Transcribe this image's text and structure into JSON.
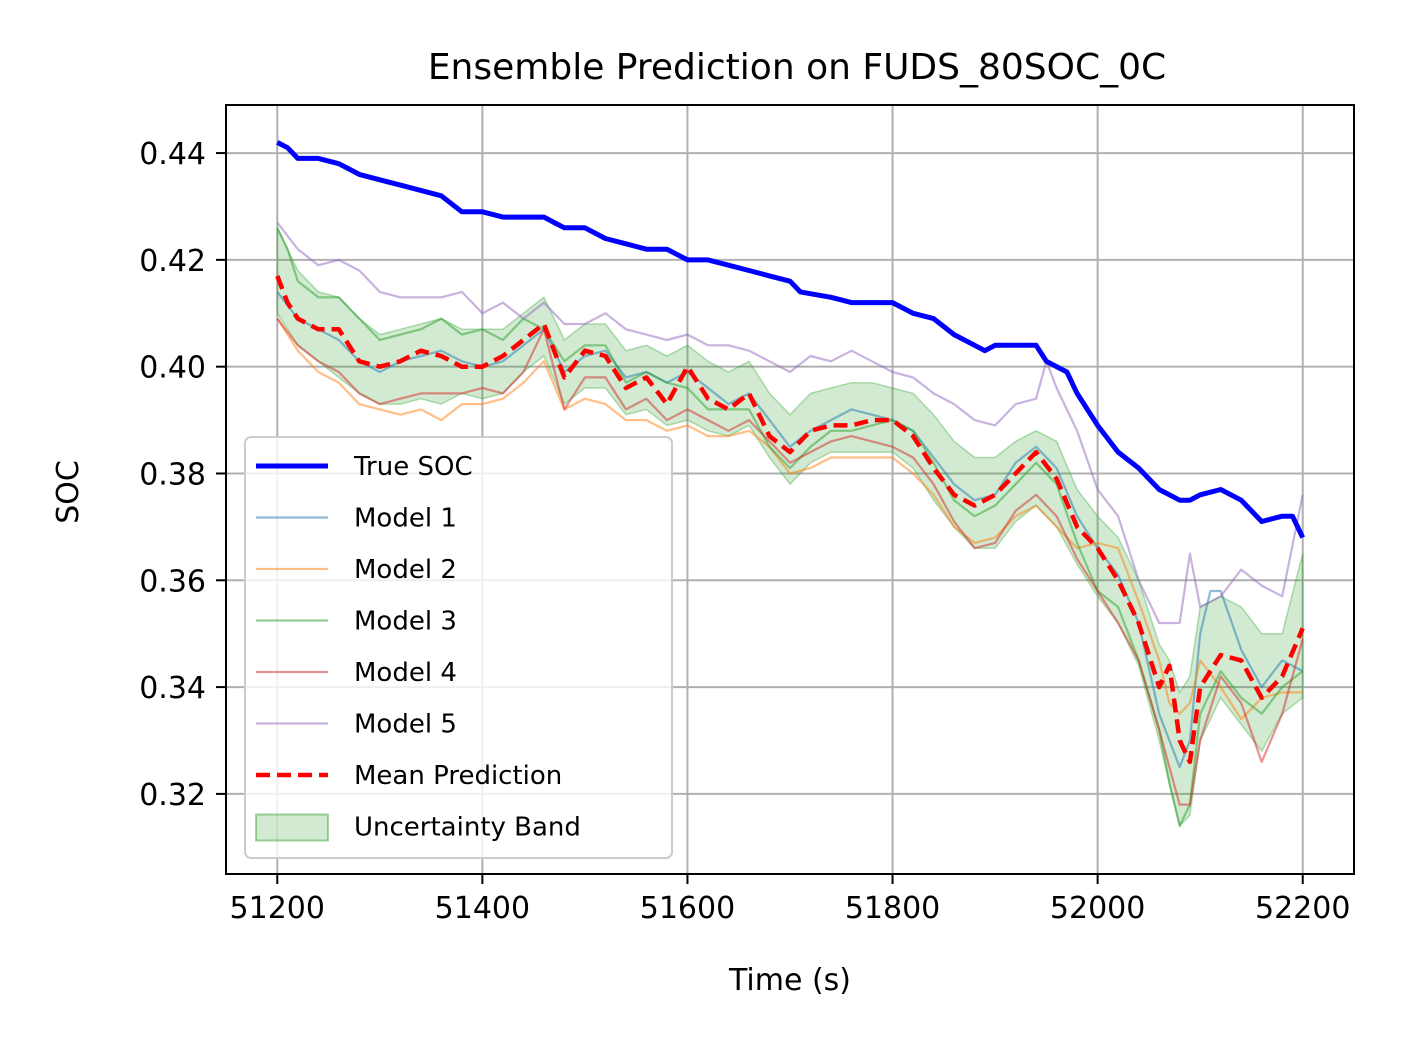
{
  "chart_data": {
    "type": "line",
    "title": "Ensemble Prediction on FUDS_80SOC_0C",
    "xlabel": "Time (s)",
    "ylabel": "SOC",
    "xlim": [
      51150,
      52250
    ],
    "ylim": [
      0.305,
      0.449
    ],
    "xticks": [
      51200,
      51400,
      51600,
      51800,
      52000,
      52200
    ],
    "yticks": [
      0.32,
      0.34,
      0.36,
      0.38,
      0.4,
      0.42,
      0.44
    ],
    "grid": true,
    "legend_position": "lower-left",
    "series": [
      {
        "name": "True SOC",
        "color": "#0000ff",
        "style": "solid",
        "x": [
          51200,
          51210,
          51220,
          51240,
          51260,
          51280,
          51300,
          51320,
          51340,
          51360,
          51380,
          51400,
          51420,
          51440,
          51460,
          51470,
          51480,
          51500,
          51520,
          51540,
          51560,
          51580,
          51600,
          51620,
          51640,
          51660,
          51680,
          51700,
          51710,
          51740,
          51760,
          51780,
          51800,
          51820,
          51840,
          51860,
          51880,
          51890,
          51900,
          51920,
          51940,
          51950,
          51960,
          51970,
          51980,
          52000,
          52020,
          52040,
          52060,
          52070,
          52080,
          52090,
          52100,
          52120,
          52140,
          52160,
          52180,
          52190,
          52200
        ],
        "y": [
          0.442,
          0.441,
          0.439,
          0.439,
          0.438,
          0.436,
          0.435,
          0.434,
          0.433,
          0.432,
          0.429,
          0.429,
          0.428,
          0.428,
          0.428,
          0.427,
          0.426,
          0.426,
          0.424,
          0.423,
          0.422,
          0.422,
          0.42,
          0.42,
          0.419,
          0.418,
          0.417,
          0.416,
          0.414,
          0.413,
          0.412,
          0.412,
          0.412,
          0.41,
          0.409,
          0.406,
          0.404,
          0.403,
          0.404,
          0.404,
          0.404,
          0.401,
          0.4,
          0.399,
          0.395,
          0.389,
          0.384,
          0.381,
          0.377,
          0.376,
          0.375,
          0.375,
          0.376,
          0.377,
          0.375,
          0.371,
          0.372,
          0.372,
          0.368
        ]
      },
      {
        "name": "Model 1",
        "color": "#1f77b4",
        "style": "thin",
        "x": [
          51200,
          51220,
          51240,
          51260,
          51280,
          51300,
          51320,
          51340,
          51360,
          51380,
          51400,
          51420,
          51440,
          51460,
          51480,
          51500,
          51520,
          51540,
          51560,
          51580,
          51600,
          51620,
          51640,
          51660,
          51680,
          51700,
          51720,
          51740,
          51760,
          51780,
          51800,
          51820,
          51840,
          51860,
          51880,
          51900,
          51920,
          51940,
          51960,
          51980,
          52000,
          52020,
          52040,
          52060,
          52070,
          52080,
          52090,
          52100,
          52110,
          52120,
          52140,
          52160,
          52180,
          52200
        ],
        "y": [
          0.414,
          0.409,
          0.407,
          0.405,
          0.401,
          0.399,
          0.401,
          0.402,
          0.403,
          0.401,
          0.4,
          0.401,
          0.404,
          0.407,
          0.399,
          0.402,
          0.403,
          0.398,
          0.399,
          0.397,
          0.399,
          0.396,
          0.393,
          0.395,
          0.39,
          0.385,
          0.388,
          0.39,
          0.392,
          0.391,
          0.39,
          0.388,
          0.383,
          0.378,
          0.375,
          0.376,
          0.382,
          0.385,
          0.381,
          0.372,
          0.366,
          0.361,
          0.352,
          0.335,
          0.33,
          0.325,
          0.33,
          0.35,
          0.358,
          0.358,
          0.347,
          0.34,
          0.345,
          0.343
        ]
      },
      {
        "name": "Model 2",
        "color": "#ff7f0e",
        "style": "thin",
        "x": [
          51200,
          51220,
          51240,
          51260,
          51280,
          51300,
          51320,
          51340,
          51360,
          51380,
          51400,
          51420,
          51440,
          51460,
          51480,
          51500,
          51520,
          51540,
          51560,
          51580,
          51600,
          51620,
          51640,
          51660,
          51680,
          51700,
          51720,
          51740,
          51760,
          51780,
          51800,
          51820,
          51840,
          51860,
          51880,
          51900,
          51920,
          51940,
          51960,
          51980,
          52000,
          52020,
          52040,
          52060,
          52070,
          52080,
          52090,
          52100,
          52120,
          52140,
          52160,
          52180,
          52200
        ],
        "y": [
          0.409,
          0.403,
          0.399,
          0.397,
          0.393,
          0.392,
          0.391,
          0.392,
          0.39,
          0.393,
          0.393,
          0.394,
          0.397,
          0.401,
          0.392,
          0.394,
          0.393,
          0.39,
          0.39,
          0.388,
          0.389,
          0.387,
          0.387,
          0.388,
          0.385,
          0.38,
          0.381,
          0.383,
          0.383,
          0.383,
          0.383,
          0.38,
          0.376,
          0.37,
          0.367,
          0.368,
          0.372,
          0.374,
          0.37,
          0.366,
          0.367,
          0.366,
          0.356,
          0.345,
          0.337,
          0.335,
          0.337,
          0.345,
          0.34,
          0.334,
          0.338,
          0.339,
          0.339
        ]
      },
      {
        "name": "Model 3",
        "color": "#2ca02c",
        "style": "thin",
        "x": [
          51200,
          51210,
          51220,
          51240,
          51260,
          51280,
          51300,
          51320,
          51340,
          51360,
          51380,
          51400,
          51420,
          51440,
          51460,
          51480,
          51500,
          51520,
          51540,
          51560,
          51580,
          51600,
          51620,
          51640,
          51660,
          51680,
          51700,
          51720,
          51740,
          51760,
          51780,
          51800,
          51820,
          51840,
          51860,
          51880,
          51900,
          51920,
          51940,
          51960,
          51980,
          52000,
          52020,
          52040,
          52060,
          52070,
          52080,
          52090,
          52100,
          52120,
          52140,
          52160,
          52180,
          52200
        ],
        "y": [
          0.426,
          0.422,
          0.416,
          0.413,
          0.413,
          0.409,
          0.405,
          0.406,
          0.407,
          0.409,
          0.406,
          0.407,
          0.405,
          0.409,
          0.407,
          0.401,
          0.404,
          0.404,
          0.397,
          0.399,
          0.397,
          0.396,
          0.392,
          0.392,
          0.392,
          0.385,
          0.381,
          0.385,
          0.388,
          0.388,
          0.389,
          0.39,
          0.388,
          0.382,
          0.375,
          0.372,
          0.374,
          0.378,
          0.382,
          0.378,
          0.367,
          0.358,
          0.355,
          0.345,
          0.332,
          0.322,
          0.314,
          0.318,
          0.335,
          0.343,
          0.338,
          0.335,
          0.34,
          0.343
        ]
      },
      {
        "name": "Model 4",
        "color": "#d62728",
        "style": "thin",
        "x": [
          51200,
          51220,
          51240,
          51260,
          51280,
          51300,
          51320,
          51340,
          51360,
          51380,
          51400,
          51420,
          51440,
          51460,
          51480,
          51500,
          51520,
          51540,
          51560,
          51580,
          51600,
          51620,
          51640,
          51660,
          51680,
          51700,
          51720,
          51740,
          51760,
          51780,
          51800,
          51820,
          51840,
          51860,
          51880,
          51900,
          51920,
          51940,
          51960,
          51980,
          52000,
          52020,
          52040,
          52060,
          52070,
          52080,
          52090,
          52100,
          52120,
          52140,
          52160,
          52180,
          52200
        ],
        "y": [
          0.409,
          0.404,
          0.401,
          0.399,
          0.395,
          0.393,
          0.394,
          0.395,
          0.395,
          0.395,
          0.396,
          0.395,
          0.399,
          0.407,
          0.392,
          0.398,
          0.398,
          0.392,
          0.394,
          0.39,
          0.392,
          0.39,
          0.388,
          0.39,
          0.386,
          0.382,
          0.384,
          0.386,
          0.387,
          0.386,
          0.385,
          0.383,
          0.378,
          0.371,
          0.366,
          0.367,
          0.373,
          0.376,
          0.372,
          0.364,
          0.358,
          0.352,
          0.345,
          0.332,
          0.325,
          0.318,
          0.318,
          0.33,
          0.342,
          0.337,
          0.326,
          0.335,
          0.349
        ]
      },
      {
        "name": "Model 5",
        "color": "#9467bd",
        "style": "thin",
        "x": [
          51200,
          51220,
          51240,
          51260,
          51280,
          51300,
          51320,
          51340,
          51360,
          51380,
          51400,
          51420,
          51440,
          51460,
          51480,
          51500,
          51520,
          51540,
          51560,
          51580,
          51600,
          51620,
          51640,
          51660,
          51680,
          51700,
          51720,
          51740,
          51760,
          51780,
          51800,
          51820,
          51840,
          51860,
          51880,
          51900,
          51920,
          51940,
          51950,
          51960,
          51980,
          52000,
          52020,
          52040,
          52060,
          52080,
          52090,
          52100,
          52120,
          52140,
          52160,
          52180,
          52200
        ],
        "y": [
          0.427,
          0.422,
          0.419,
          0.42,
          0.418,
          0.414,
          0.413,
          0.413,
          0.413,
          0.414,
          0.41,
          0.412,
          0.409,
          0.412,
          0.408,
          0.408,
          0.41,
          0.407,
          0.406,
          0.405,
          0.406,
          0.404,
          0.404,
          0.403,
          0.401,
          0.399,
          0.402,
          0.401,
          0.403,
          0.401,
          0.399,
          0.398,
          0.395,
          0.393,
          0.39,
          0.389,
          0.393,
          0.394,
          0.401,
          0.396,
          0.388,
          0.377,
          0.372,
          0.36,
          0.352,
          0.352,
          0.365,
          0.355,
          0.357,
          0.362,
          0.359,
          0.357,
          0.376
        ]
      },
      {
        "name": "Mean Prediction",
        "color": "#ff0000",
        "style": "dashed",
        "x": [
          51200,
          51210,
          51220,
          51240,
          51260,
          51280,
          51300,
          51320,
          51340,
          51360,
          51380,
          51400,
          51420,
          51440,
          51460,
          51480,
          51500,
          51520,
          51540,
          51560,
          51580,
          51600,
          51620,
          51640,
          51660,
          51680,
          51700,
          51720,
          51740,
          51760,
          51780,
          51800,
          51820,
          51840,
          51860,
          51880,
          51900,
          51920,
          51940,
          51960,
          51980,
          52000,
          52020,
          52040,
          52060,
          52070,
          52080,
          52090,
          52100,
          52120,
          52140,
          52160,
          52180,
          52200
        ],
        "y": [
          0.417,
          0.412,
          0.409,
          0.407,
          0.407,
          0.401,
          0.4,
          0.401,
          0.403,
          0.402,
          0.4,
          0.4,
          0.402,
          0.405,
          0.408,
          0.398,
          0.403,
          0.402,
          0.396,
          0.398,
          0.393,
          0.4,
          0.394,
          0.392,
          0.395,
          0.387,
          0.384,
          0.388,
          0.389,
          0.389,
          0.39,
          0.39,
          0.387,
          0.381,
          0.376,
          0.374,
          0.376,
          0.38,
          0.384,
          0.379,
          0.37,
          0.366,
          0.36,
          0.352,
          0.34,
          0.344,
          0.33,
          0.326,
          0.34,
          0.346,
          0.345,
          0.338,
          0.342,
          0.351
        ]
      }
    ],
    "uncertainty_band": {
      "name": "Uncertainty Band",
      "color": "#2ca02c",
      "x": [
        51200,
        51220,
        51240,
        51260,
        51280,
        51300,
        51320,
        51340,
        51360,
        51380,
        51400,
        51420,
        51440,
        51460,
        51480,
        51500,
        51520,
        51540,
        51560,
        51580,
        51600,
        51620,
        51640,
        51660,
        51680,
        51700,
        51720,
        51740,
        51760,
        51780,
        51800,
        51820,
        51840,
        51860,
        51880,
        51900,
        51920,
        51940,
        51960,
        51980,
        52000,
        52020,
        52040,
        52060,
        52070,
        52080,
        52090,
        52100,
        52120,
        52140,
        52160,
        52180,
        52200
      ],
      "upper": [
        0.426,
        0.418,
        0.414,
        0.413,
        0.409,
        0.406,
        0.407,
        0.408,
        0.409,
        0.407,
        0.407,
        0.407,
        0.41,
        0.413,
        0.405,
        0.408,
        0.408,
        0.403,
        0.404,
        0.402,
        0.404,
        0.401,
        0.399,
        0.401,
        0.395,
        0.391,
        0.395,
        0.396,
        0.397,
        0.397,
        0.396,
        0.395,
        0.391,
        0.386,
        0.383,
        0.383,
        0.386,
        0.388,
        0.386,
        0.377,
        0.372,
        0.368,
        0.36,
        0.348,
        0.345,
        0.339,
        0.342,
        0.355,
        0.357,
        0.355,
        0.35,
        0.35,
        0.365
      ],
      "lower": [
        0.41,
        0.404,
        0.401,
        0.398,
        0.395,
        0.393,
        0.393,
        0.394,
        0.393,
        0.395,
        0.394,
        0.395,
        0.399,
        0.402,
        0.393,
        0.396,
        0.396,
        0.391,
        0.392,
        0.389,
        0.39,
        0.388,
        0.387,
        0.389,
        0.383,
        0.378,
        0.382,
        0.384,
        0.384,
        0.384,
        0.384,
        0.381,
        0.375,
        0.37,
        0.366,
        0.366,
        0.371,
        0.374,
        0.37,
        0.363,
        0.357,
        0.352,
        0.344,
        0.33,
        0.322,
        0.314,
        0.316,
        0.33,
        0.338,
        0.333,
        0.328,
        0.335,
        0.338
      ]
    },
    "legend_entries": [
      "True SOC",
      "Model 1",
      "Model 2",
      "Model 3",
      "Model 4",
      "Model 5",
      "Mean Prediction",
      "Uncertainty Band"
    ]
  }
}
